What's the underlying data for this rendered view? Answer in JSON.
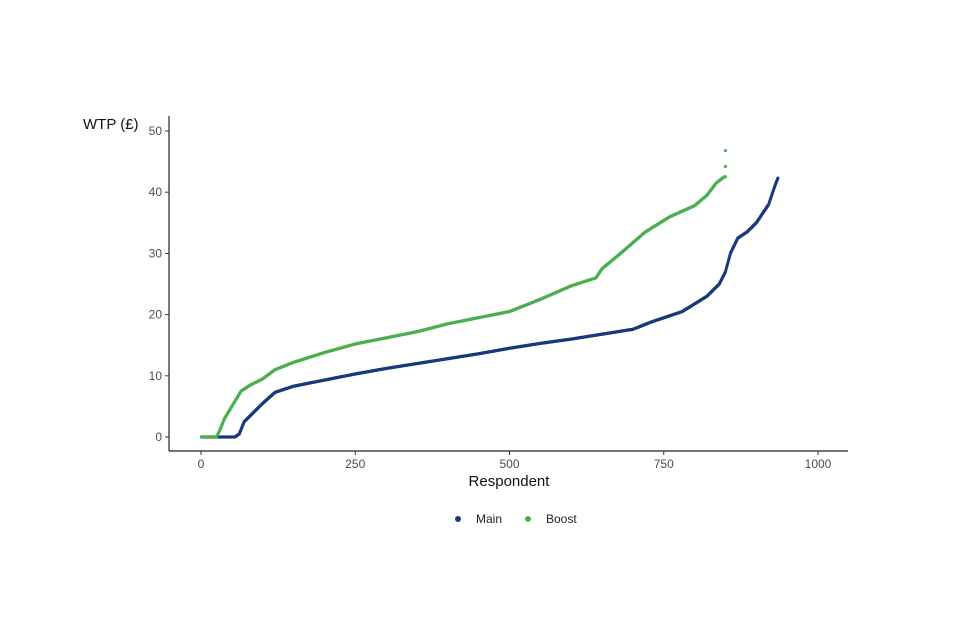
{
  "chart_data": {
    "type": "scatter",
    "title": "",
    "xlabel": "Respondent",
    "ylabel": "WTP (£)",
    "xlim": [
      0,
      1000
    ],
    "ylim": [
      0,
      50
    ],
    "x_ticks": [
      0,
      250,
      500,
      750,
      1000
    ],
    "y_ticks": [
      0,
      10,
      20,
      30,
      40,
      50
    ],
    "grid": false,
    "legend_position": "bottom",
    "series": [
      {
        "name": "Main",
        "color": "#1b3a7a",
        "n": 935,
        "curve": [
          [
            1,
            0
          ],
          [
            55,
            0
          ],
          [
            62,
            0.5
          ],
          [
            70,
            2.5
          ],
          [
            85,
            4
          ],
          [
            100,
            5.5
          ],
          [
            120,
            7.3
          ],
          [
            150,
            8.3
          ],
          [
            200,
            9.3
          ],
          [
            250,
            10.3
          ],
          [
            300,
            11.2
          ],
          [
            350,
            12.0
          ],
          [
            400,
            12.8
          ],
          [
            450,
            13.6
          ],
          [
            500,
            14.5
          ],
          [
            550,
            15.3
          ],
          [
            600,
            16.0
          ],
          [
            650,
            16.8
          ],
          [
            700,
            17.6
          ],
          [
            730,
            18.8
          ],
          [
            780,
            20.5
          ],
          [
            820,
            23
          ],
          [
            840,
            25
          ],
          [
            850,
            27
          ],
          [
            858,
            30
          ],
          [
            870,
            32.5
          ],
          [
            885,
            33.5
          ],
          [
            900,
            35
          ],
          [
            910,
            36.5
          ],
          [
            920,
            38
          ],
          [
            930,
            41
          ],
          [
            935,
            42.3
          ]
        ],
        "extra_points": []
      },
      {
        "name": "Boost",
        "color": "#4caf50",
        "n": 850,
        "curve": [
          [
            1,
            0
          ],
          [
            25,
            0
          ],
          [
            30,
            1
          ],
          [
            38,
            3
          ],
          [
            50,
            5
          ],
          [
            65,
            7.5
          ],
          [
            80,
            8.5
          ],
          [
            100,
            9.5
          ],
          [
            120,
            11
          ],
          [
            150,
            12.2
          ],
          [
            200,
            13.8
          ],
          [
            250,
            15.2
          ],
          [
            300,
            16.2
          ],
          [
            350,
            17.2
          ],
          [
            400,
            18.5
          ],
          [
            450,
            19.5
          ],
          [
            500,
            20.5
          ],
          [
            550,
            22.5
          ],
          [
            600,
            24.7
          ],
          [
            640,
            26
          ],
          [
            650,
            27.5
          ],
          [
            680,
            30
          ],
          [
            720,
            33.5
          ],
          [
            760,
            36
          ],
          [
            800,
            37.8
          ],
          [
            820,
            39.5
          ],
          [
            835,
            41.5
          ],
          [
            848,
            42.5
          ],
          [
            850,
            42.5
          ]
        ],
        "extra_points": [
          [
            850,
            44.2
          ],
          [
            850,
            46.8
          ]
        ]
      }
    ]
  }
}
